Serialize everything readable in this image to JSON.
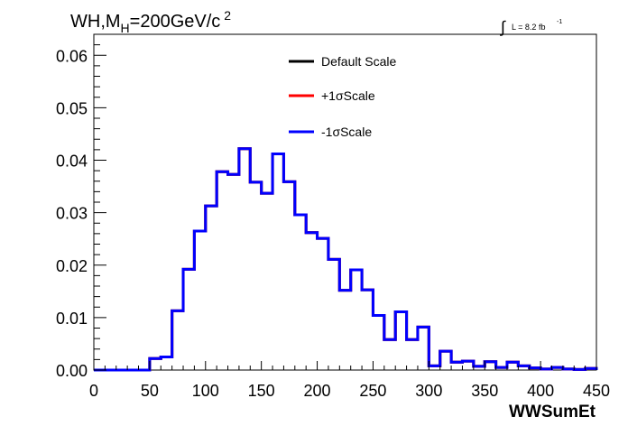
{
  "chart_data": {
    "type": "line",
    "title": "WH,M",
    "title_sub": "H",
    "title_rest": "=200GeV/c",
    "title_sup": "2",
    "lumi_label": {
      "integral_symbol": "∫",
      "text": "L = 8.2 fb",
      "sup": "-1"
    },
    "xlabel": "WWSumEt",
    "ylabel": "",
    "xlim": [
      0,
      450
    ],
    "ylim": [
      0,
      0.064
    ],
    "x_ticks": [
      0,
      50,
      100,
      150,
      200,
      250,
      300,
      350,
      400,
      450
    ],
    "x_tick_labels": [
      "0",
      "50",
      "100",
      "150",
      "200",
      "250",
      "300",
      "350",
      "400",
      "450"
    ],
    "y_ticks": [
      0,
      0.01,
      0.02,
      0.03,
      0.04,
      0.05,
      0.06
    ],
    "y_tick_labels": [
      "0.00",
      "0.01",
      "0.02",
      "0.03",
      "0.04",
      "0.05",
      "0.06"
    ],
    "grid": false,
    "legend_position": "top-center",
    "bin_edges": [
      0,
      10,
      20,
      30,
      40,
      50,
      60,
      70,
      80,
      90,
      100,
      110,
      120,
      130,
      140,
      150,
      160,
      170,
      180,
      190,
      200,
      210,
      220,
      230,
      240,
      250,
      260,
      270,
      280,
      290,
      300,
      310,
      320,
      330,
      340,
      350,
      360,
      370,
      380,
      390,
      400,
      410,
      420,
      430,
      440,
      450
    ],
    "series": [
      {
        "name": "Default Scale",
        "color": "#000000",
        "values": [
          0,
          0,
          0,
          0,
          0,
          0.0022,
          0.0025,
          0.0113,
          0.0192,
          0.0265,
          0.0313,
          0.0378,
          0.0373,
          0.0422,
          0.0358,
          0.0337,
          0.0412,
          0.0359,
          0.0296,
          0.0262,
          0.0251,
          0.0211,
          0.0152,
          0.0191,
          0.0153,
          0.0104,
          0.0058,
          0.0111,
          0.0058,
          0.0082,
          0.0008,
          0.0036,
          0.0015,
          0.0017,
          0.0007,
          0.0016,
          0.0005,
          0.0015,
          0.0008,
          0.0004,
          0.0002,
          0.0005,
          0.0002,
          0.0001,
          0.0003
        ]
      },
      {
        "name": "+1σScale",
        "color": "#ff0000",
        "values": [
          0,
          0,
          0,
          0,
          0,
          0.0022,
          0.0025,
          0.0113,
          0.0192,
          0.0265,
          0.0313,
          0.0378,
          0.0373,
          0.0422,
          0.0358,
          0.0337,
          0.0412,
          0.0359,
          0.0296,
          0.0262,
          0.0251,
          0.0211,
          0.0152,
          0.0191,
          0.0153,
          0.0104,
          0.0058,
          0.0111,
          0.0058,
          0.0082,
          0.0008,
          0.0036,
          0.0015,
          0.0017,
          0.0007,
          0.0016,
          0.0005,
          0.0015,
          0.0008,
          0.0004,
          0.0002,
          0.0005,
          0.0002,
          0.0001,
          0.0003
        ]
      },
      {
        "name": "-1σScale",
        "color": "#0000ff",
        "values": [
          0,
          0,
          0,
          0,
          0,
          0.0022,
          0.0025,
          0.0113,
          0.0192,
          0.0265,
          0.0313,
          0.0378,
          0.0373,
          0.0422,
          0.0358,
          0.0337,
          0.0412,
          0.0359,
          0.0296,
          0.0262,
          0.0251,
          0.0211,
          0.0152,
          0.0191,
          0.0153,
          0.0104,
          0.0058,
          0.0111,
          0.0058,
          0.0082,
          0.0008,
          0.0036,
          0.0015,
          0.0017,
          0.0007,
          0.0016,
          0.0005,
          0.0015,
          0.0008,
          0.0004,
          0.0002,
          0.0005,
          0.0002,
          0.0001,
          0.0003
        ]
      }
    ]
  }
}
